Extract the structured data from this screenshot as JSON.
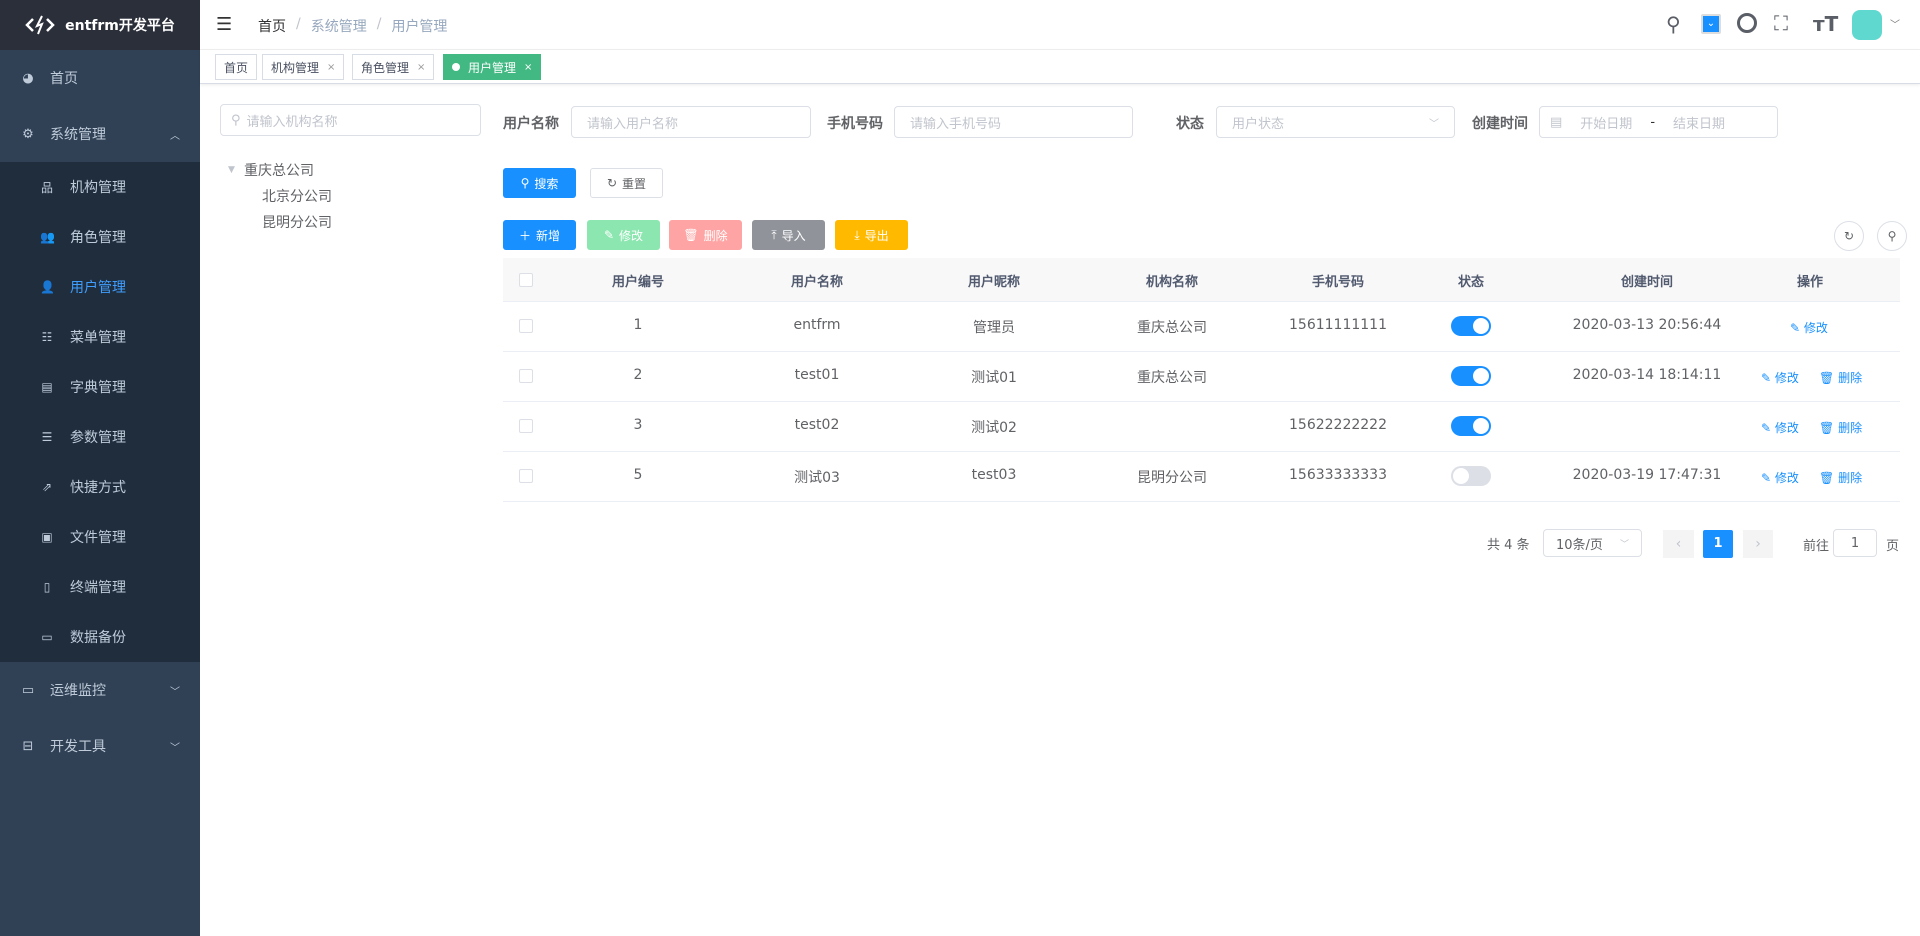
{
  "app": {
    "title": "entfrm开发平台"
  },
  "sidebar": {
    "home": "首页",
    "system": "系统管理",
    "ops": "运维监控",
    "dev": "开发工具",
    "sub": [
      "机构管理",
      "角色管理",
      "用户管理",
      "菜单管理",
      "字典管理",
      "参数管理",
      "快捷方式",
      "文件管理",
      "终端管理",
      "数据备份"
    ]
  },
  "breadcrumb": [
    "首页",
    "系统管理",
    "用户管理"
  ],
  "tabs": [
    "首页",
    "机构管理",
    "角色管理",
    "用户管理"
  ],
  "tree": {
    "placeholder": "请输入机构名称",
    "root": "重庆总公司",
    "children": [
      "北京分公司",
      "昆明分公司"
    ]
  },
  "form": {
    "username_label": "用户名称",
    "username_ph": "请输入用户名称",
    "phone_label": "手机号码",
    "phone_ph": "请输入手机号码",
    "status_label": "状态",
    "status_ph": "用户状态",
    "created_label": "创建时间",
    "start_ph": "开始日期",
    "sep": "-",
    "end_ph": "结束日期",
    "search": "搜索",
    "reset": "重置"
  },
  "toolbar": {
    "add": "新增",
    "edit": "修改",
    "delete": "删除",
    "import": "导入",
    "export": "导出"
  },
  "colors": {
    "primary": "#1890ff",
    "success": "#8ce6b0",
    "danger": "#ffa4a4",
    "info": "#909399",
    "warning": "#ffba00",
    "tab_active": "#42b983"
  },
  "table": {
    "headers": [
      "用户编号",
      "用户名称",
      "用户昵称",
      "机构名称",
      "手机号码",
      "状态",
      "创建时间",
      "操作"
    ],
    "rows": [
      {
        "id": "1",
        "name": "entfrm",
        "nick": "管理员",
        "org": "重庆总公司",
        "phone": "15611111111",
        "enabled": true,
        "created": "2020-03-13 20:56:44",
        "ops": [
          "修改"
        ]
      },
      {
        "id": "2",
        "name": "test01",
        "nick": "测试01",
        "org": "重庆总公司",
        "phone": "",
        "enabled": true,
        "created": "2020-03-14 18:14:11",
        "ops": [
          "修改",
          "删除"
        ]
      },
      {
        "id": "3",
        "name": "test02",
        "nick": "测试02",
        "org": "",
        "phone": "15622222222",
        "enabled": true,
        "created": "",
        "ops": [
          "修改",
          "删除"
        ]
      },
      {
        "id": "5",
        "name": "测试03",
        "nick": "test03",
        "org": "昆明分公司",
        "phone": "15633333333",
        "enabled": false,
        "created": "2020-03-19 17:47:31",
        "ops": [
          "修改",
          "删除"
        ]
      }
    ]
  },
  "pagination": {
    "total": "共 4 条",
    "size": "10条/页",
    "page": "1",
    "goto": "前往",
    "goto_value": "1",
    "page_suffix": "页"
  }
}
